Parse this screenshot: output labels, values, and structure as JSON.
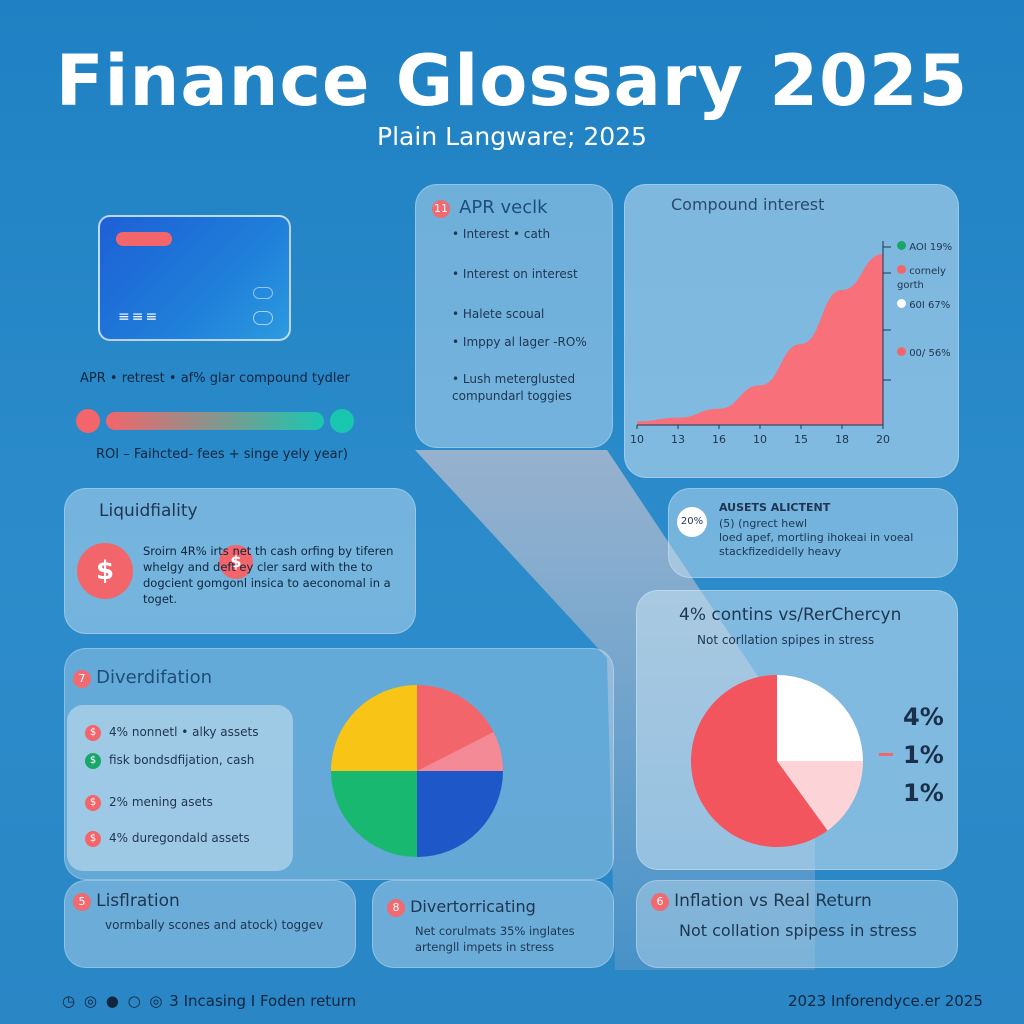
{
  "header": {
    "title": "Finance Glossary 2025",
    "subtitle": "Plain Langware; 2025"
  },
  "card": {
    "apr_line": "APR • retrest • af% glar compound tydler",
    "roi_line": "ROI – Faihcted- fees + singe yely year)"
  },
  "apr_panel": {
    "badge": "11",
    "title": "APR veclk",
    "items": [
      "Interest • cath",
      "Interest on interest",
      "Halete scoual",
      "Imppy al lager -RO%",
      "Lush meterglusted compundarl toggies"
    ]
  },
  "compound_panel": {
    "title": "Compound interest",
    "legend": [
      {
        "label": "AOI 19%",
        "color": "#19a66b"
      },
      {
        "label": "cornely gorth",
        "color": "#f2656b"
      },
      {
        "label": "60I 67%",
        "color": "#ffffff"
      },
      {
        "label": "00/ 56%",
        "color": "#f2656b"
      }
    ]
  },
  "chart_data": [
    {
      "type": "area",
      "title": "Compound interest",
      "x": [
        "10",
        "13",
        "16",
        "10",
        "15",
        "18",
        "20"
      ],
      "values": [
        2,
        4,
        9,
        22,
        45,
        75,
        95
      ],
      "ylim": [
        0,
        100
      ],
      "color": "#f7707a"
    },
    {
      "type": "pie",
      "title": "",
      "values": [
        25,
        25,
        25,
        25
      ],
      "colors": [
        "#f2656b",
        "#1e58c8",
        "#19b871",
        "#f8c516"
      ],
      "extra_slice_color": "#f48a95"
    },
    {
      "type": "pie",
      "title": "",
      "values": [
        60,
        25,
        15
      ],
      "colors": [
        "#f2555e",
        "#ffffff",
        "#fcd4d8"
      ],
      "labels": [
        "4%",
        "1%",
        "1%"
      ]
    }
  ],
  "assets_panel": {
    "badge": "20%",
    "title": "AUSETS ALICTENT",
    "lines": [
      "(5) (ngrect hewl",
      "loed apef, mortling ihokeai in voeal",
      "stackfizedidelly heavy"
    ]
  },
  "liquidity_panel": {
    "title": "Liquidfiality",
    "text": "Sroirn 4R% irts net th cash orfing by tiferen whelgy and deft ey cler sard with the to dogcient gomgonl insica to aeconomal in a toget."
  },
  "inflation_top": {
    "title": "4% contins vs/RerChercyn",
    "subtitle": "Not corllation spipes in stress",
    "pct_1": "4%",
    "pct_2": "1%",
    "pct_3": "1%"
  },
  "diversification_panel": {
    "badge": "7",
    "title": "Diverdifation",
    "items": [
      {
        "text": "4% nonnetl • alky assets",
        "color": "#f2656b",
        "icon": "$"
      },
      {
        "text": "fisk bondsdfijation, cash",
        "color": "#19a66b",
        "icon": "$"
      },
      {
        "text": "2% mening asets",
        "color": "#f2656b",
        "icon": "$"
      },
      {
        "text": "4% duregondald assets",
        "color": "#f2656b",
        "icon": "$"
      }
    ]
  },
  "lisflation_panel": {
    "badge": "5",
    "title": "Lisflration",
    "text": "vormbally scones and atock) toggev"
  },
  "divertor_panel": {
    "badge": "8",
    "title": "Divertorricating",
    "text": "Net corulmats 35% inglates artengll impets in stress"
  },
  "inflation_bottom": {
    "badge": "6",
    "title": "Inflation vs Real Return",
    "subtitle": "Not collation spipess in stress"
  },
  "footer": {
    "left": "3 Incasing I Foden return",
    "right": "2023 Inforendyce.er 2025"
  }
}
